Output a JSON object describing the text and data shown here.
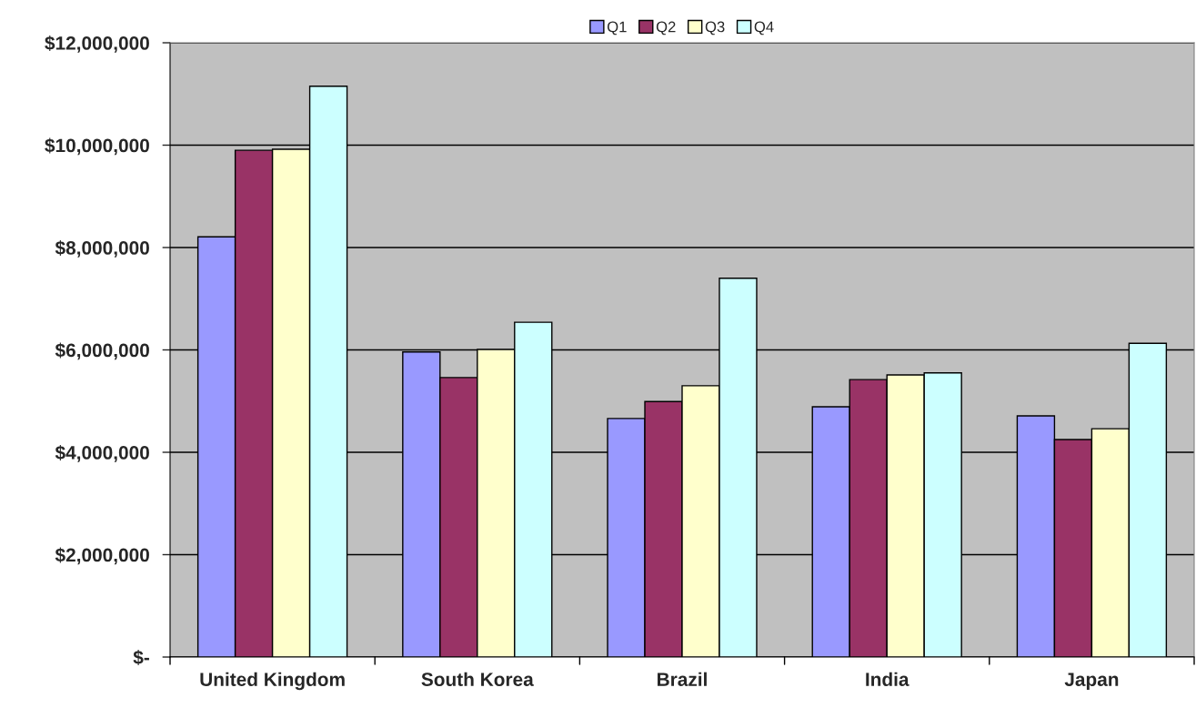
{
  "chart_data": {
    "type": "bar",
    "categories": [
      "United Kingdom",
      "South Korea",
      "Brazil",
      "India",
      "Japan"
    ],
    "series": [
      {
        "name": "Q1",
        "color": "#9999ff",
        "values": [
          8210000,
          5960000,
          4660000,
          4890000,
          4710000
        ]
      },
      {
        "name": "Q2",
        "color": "#993366",
        "values": [
          9900000,
          5460000,
          4990000,
          5420000,
          4250000
        ]
      },
      {
        "name": "Q3",
        "color": "#ffffcc",
        "values": [
          9920000,
          6010000,
          5300000,
          5510000,
          4460000
        ]
      },
      {
        "name": "Q4",
        "color": "#ccffff",
        "values": [
          11150000,
          6540000,
          7400000,
          5550000,
          6130000
        ]
      }
    ],
    "ylim": [
      0,
      12000000
    ],
    "yticks": [
      {
        "value": 0,
        "label": "$-"
      },
      {
        "value": 2000000,
        "label": "$2,000,000"
      },
      {
        "value": 4000000,
        "label": "$4,000,000"
      },
      {
        "value": 6000000,
        "label": "$6,000,000"
      },
      {
        "value": 8000000,
        "label": "$8,000,000"
      },
      {
        "value": 10000000,
        "label": "$10,000,000"
      },
      {
        "value": 12000000,
        "label": "$12,000,000"
      }
    ],
    "grid": "y",
    "legend": "top"
  }
}
